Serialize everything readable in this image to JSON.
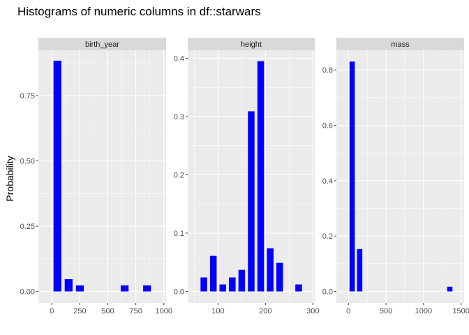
{
  "chart_data": {
    "type": "bar",
    "title": "Histograms of numeric columns in df::starwars",
    "ylabel": "Probability",
    "xlabel": "",
    "grid": true,
    "colors": {
      "bar": "#0000ff",
      "panel_background": "#ebebeb",
      "strip_background": "#d9d9d9",
      "grid": "#ffffff"
    },
    "panels": [
      {
        "name": "birth_year",
        "xlim": [
          -120,
          1020
        ],
        "ylim": [
          -0.044,
          0.924
        ],
        "x_ticks": [
          0,
          250,
          500,
          750,
          1000
        ],
        "x_tick_labels": [
          "0",
          "250",
          "500",
          "750",
          "1000"
        ],
        "y_ticks": [
          0,
          0.25,
          0.5,
          0.75
        ],
        "y_tick_labels": [
          "0.00",
          "0.25",
          "0.50",
          "0.75"
        ],
        "bin_width": 100,
        "bins": [
          {
            "x": 50,
            "y": 0.884
          },
          {
            "x": 150,
            "y": 0.047
          },
          {
            "x": 250,
            "y": 0.023
          },
          {
            "x": 350,
            "y": 0.0
          },
          {
            "x": 450,
            "y": 0.0
          },
          {
            "x": 550,
            "y": 0.0
          },
          {
            "x": 650,
            "y": 0.023
          },
          {
            "x": 750,
            "y": 0.0
          },
          {
            "x": 850,
            "y": 0.023
          }
        ]
      },
      {
        "name": "height",
        "xlim": [
          36,
          304
        ],
        "ylim": [
          -0.0197,
          0.4137
        ],
        "x_ticks": [
          100,
          200,
          300
        ],
        "x_tick_labels": [
          "100",
          "200",
          "300"
        ],
        "y_ticks": [
          0,
          0.1,
          0.2,
          0.3,
          0.4
        ],
        "y_tick_labels": [
          "0.0",
          "0.1",
          "0.2",
          "0.3",
          "0.4"
        ],
        "bin_width": 20,
        "bins": [
          {
            "x": 70,
            "y": 0.024
          },
          {
            "x": 90,
            "y": 0.061
          },
          {
            "x": 110,
            "y": 0.012
          },
          {
            "x": 130,
            "y": 0.024
          },
          {
            "x": 150,
            "y": 0.037
          },
          {
            "x": 170,
            "y": 0.309
          },
          {
            "x": 190,
            "y": 0.395
          },
          {
            "x": 210,
            "y": 0.074
          },
          {
            "x": 230,
            "y": 0.049
          },
          {
            "x": 250,
            "y": 0.0
          },
          {
            "x": 270,
            "y": 0.012
          }
        ]
      },
      {
        "name": "mass",
        "xlim": [
          -160,
          1540
        ],
        "ylim": [
          -0.0415,
          0.871
        ],
        "x_ticks": [
          0,
          500,
          1000,
          1500
        ],
        "x_tick_labels": [
          "0",
          "500",
          "1000",
          "1500"
        ],
        "y_ticks": [
          0,
          0.2,
          0.4,
          0.6,
          0.8
        ],
        "y_tick_labels": [
          "0.0",
          "0.2",
          "0.4",
          "0.6",
          "0.8"
        ],
        "bin_width": 100,
        "bins": [
          {
            "x": 50,
            "y": 0.83
          },
          {
            "x": 150,
            "y": 0.153
          },
          {
            "x": 250,
            "y": 0.0
          },
          {
            "x": 1350,
            "y": 0.017
          }
        ]
      }
    ]
  }
}
